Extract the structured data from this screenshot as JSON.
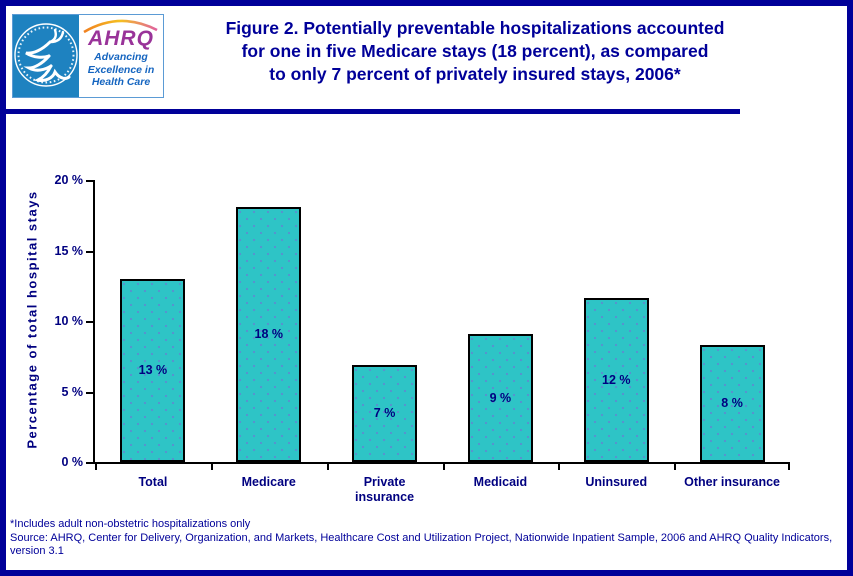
{
  "header": {
    "logo": {
      "hhs_seal": "Department of Health & Human Services USA seal",
      "acronym": "AHRQ",
      "tagline_lines": [
        "Advancing",
        "Excellence in",
        "Health Care"
      ]
    },
    "title_lines": [
      "Figure 2. Potentially preventable hospitalizations accounted",
      "for one in five Medicare stays (18 percent), as compared",
      "to only 7 percent of privately insured stays, 2006*"
    ]
  },
  "chart_data": {
    "type": "bar",
    "categories": [
      "Total",
      "Medicare",
      "Private insurance",
      "Medicaid",
      "Uninsured",
      "Other insurance"
    ],
    "category_labels": [
      [
        "Total"
      ],
      [
        "Medicare"
      ],
      [
        "Private",
        "insurance"
      ],
      [
        "Medicaid"
      ],
      [
        "Uninsured"
      ],
      [
        "Other insurance"
      ]
    ],
    "values": [
      13,
      18.1,
      6.9,
      9.1,
      11.6,
      8.3
    ],
    "bar_labels": [
      "13 %",
      "18 %",
      "7 %",
      "9 %",
      "12 %",
      "8 %"
    ],
    "ylabel": "Percentage of total hospital stays",
    "xlabel": "",
    "ylim": [
      0,
      20
    ],
    "ytick_values": [
      0,
      5,
      10,
      15,
      20
    ],
    "yticks": [
      "0 %",
      "5 %",
      "10 %",
      "15 %",
      "20 %"
    ],
    "grid": false,
    "legend": "none",
    "bar_fill": "#2ec4c6",
    "bar_dot_color": "#5a8fd0",
    "bar_border": "#000000",
    "label_color": "#000080",
    "axis_color": "#000000"
  },
  "footnotes": {
    "note": "*Includes adult non-obstetric hospitalizations only",
    "source": "Source: AHRQ, Center for Delivery, Organization, and Markets, Healthcare Cost and Utilization Project, Nationwide Inpatient Sample, 2006 and AHRQ Quality Indicators, version 3.1"
  },
  "colors": {
    "page_border": "#000099",
    "title_navy": "#000099",
    "hhs_blue": "#1e82c0",
    "ahrq_purple": "#993399",
    "tagline_blue": "#1565c0"
  }
}
